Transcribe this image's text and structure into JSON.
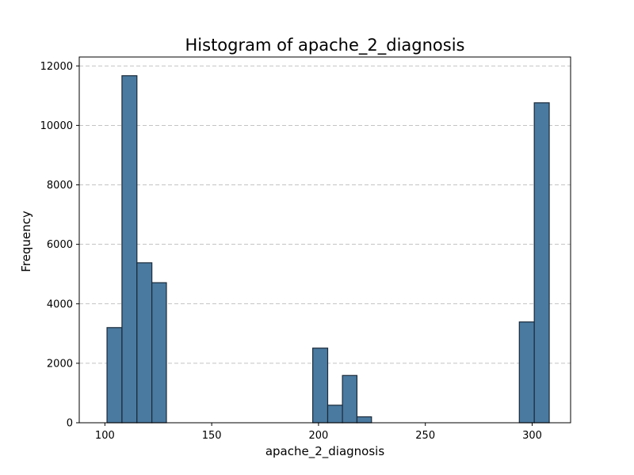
{
  "chart_data": {
    "type": "bar",
    "title": "Histogram of apache_2_diagnosis",
    "xlabel": "apache_2_diagnosis",
    "ylabel": "Frequency",
    "xlim": [
      88,
      318
    ],
    "ylim": [
      0,
      12300
    ],
    "xticks": [
      100,
      150,
      200,
      250,
      300
    ],
    "yticks": [
      0,
      2000,
      4000,
      6000,
      8000,
      10000,
      12000
    ],
    "grid": "y-dashed",
    "bins": [
      {
        "x0": 101,
        "x1": 108,
        "value": 3200
      },
      {
        "x0": 108,
        "x1": 115,
        "value": 11670
      },
      {
        "x0": 115,
        "x1": 122,
        "value": 5380
      },
      {
        "x0": 122,
        "x1": 128.8,
        "value": 4710
      },
      {
        "x0": 197.3,
        "x1": 204.3,
        "value": 2510
      },
      {
        "x0": 204.3,
        "x1": 211.2,
        "value": 590
      },
      {
        "x0": 211.2,
        "x1": 218,
        "value": 1590
      },
      {
        "x0": 218,
        "x1": 224.8,
        "value": 200
      },
      {
        "x0": 294,
        "x1": 301,
        "value": 3390
      },
      {
        "x0": 301,
        "x1": 308,
        "value": 10760
      }
    ]
  }
}
